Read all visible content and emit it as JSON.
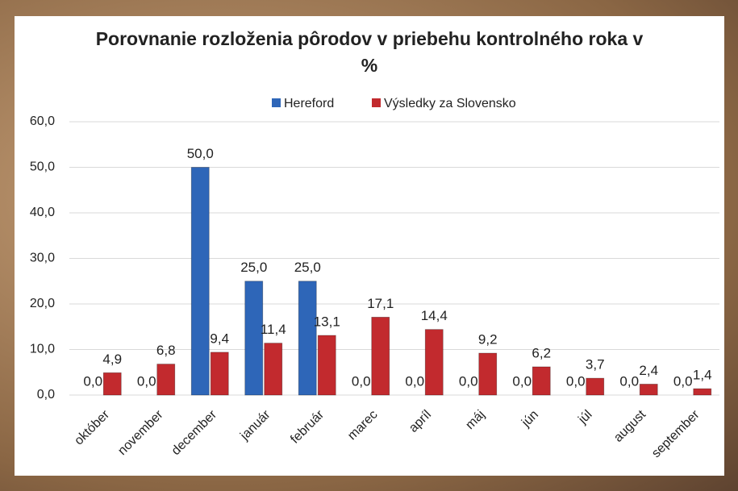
{
  "chart_data": {
    "type": "bar",
    "title": "Porovnanie rozloženia pôrodov v priebehu kontrolného roka v %",
    "categories": [
      "október",
      "november",
      "december",
      "január",
      "február",
      "marec",
      "apríl",
      "máj",
      "jún",
      "júl",
      "august",
      "september"
    ],
    "series": [
      {
        "name": "Hereford",
        "color": "#2e66b8",
        "values": [
          0,
          0,
          50,
          25,
          25,
          0,
          0,
          0,
          0,
          0,
          0,
          0
        ],
        "value_labels": [
          "0,0",
          "0,0",
          "50,0",
          "25,0",
          "25,0",
          "0,0",
          "0,0",
          "0,0",
          "0,0",
          "0,0",
          "0,0",
          "0,0"
        ]
      },
      {
        "name": "Výsledky za Slovensko",
        "color": "#c22a2e",
        "values": [
          4.9,
          6.8,
          9.4,
          11.4,
          13.1,
          17.1,
          14.4,
          9.2,
          6.2,
          3.7,
          2.4,
          1.4
        ],
        "value_labels": [
          "4,9",
          "6,8",
          "9,4",
          "11,4",
          "13,1",
          "17,1",
          "14,4",
          "9,2",
          "6,2",
          "3,7",
          "2,4",
          "1,4"
        ]
      }
    ],
    "ylim": [
      0,
      60
    ],
    "yticks": [
      {
        "value": 0,
        "label": "0,0"
      },
      {
        "value": 10,
        "label": "10,0"
      },
      {
        "value": 20,
        "label": "20,0"
      },
      {
        "value": 30,
        "label": "30,0"
      },
      {
        "value": 40,
        "label": "40,0"
      },
      {
        "value": 50,
        "label": "50,0"
      },
      {
        "value": 60,
        "label": "60,0"
      }
    ],
    "grid": true,
    "legend": "top"
  }
}
